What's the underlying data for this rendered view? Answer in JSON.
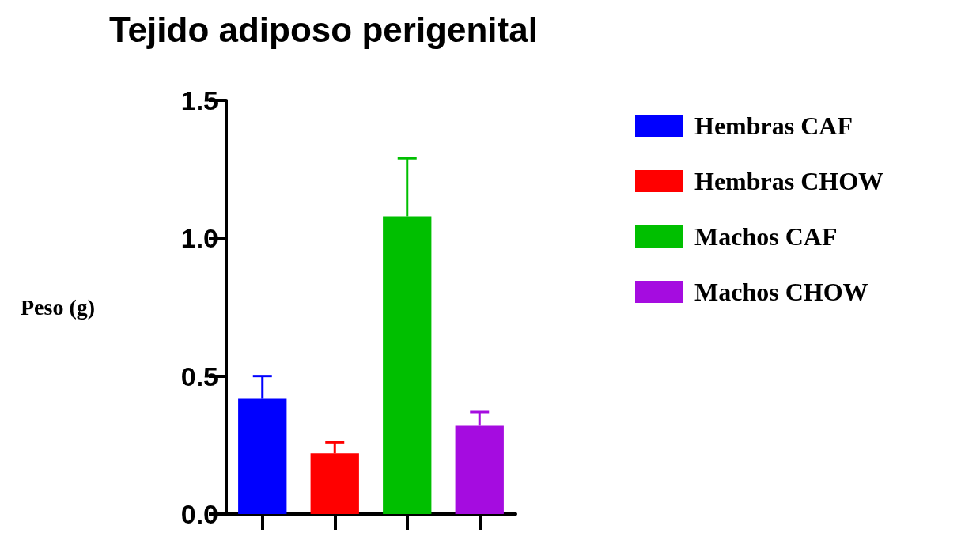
{
  "chart_data": {
    "type": "bar",
    "title": "Tejido adiposo perigenital",
    "ylabel": "Peso (g)",
    "categories": [
      null,
      null,
      null,
      null
    ],
    "stacked": true,
    "series": [
      {
        "name": "Hembras CAF",
        "color": "#0000ff",
        "values": [
          0.42,
          null,
          null,
          null
        ],
        "errors": [
          [
            0.42,
            0.5
          ],
          null,
          null,
          null
        ]
      },
      {
        "name": "Hembras CHOW",
        "color": "#ff0000",
        "values": [
          null,
          0.22,
          null,
          null
        ],
        "errors": [
          null,
          [
            0.22,
            0.26
          ],
          null,
          null
        ]
      },
      {
        "name": "Machos CAF",
        "color": "#00bf00",
        "values": [
          null,
          null,
          1.08,
          null
        ],
        "errors": [
          null,
          null,
          [
            1.08,
            1.29
          ],
          null
        ]
      },
      {
        "name": "Machos CHOW",
        "color": "#a50ce0",
        "values": [
          null,
          null,
          null,
          0.32
        ],
        "errors": [
          null,
          null,
          null,
          [
            0.32,
            0.37
          ]
        ]
      }
    ],
    "ylim": [
      0,
      1.5
    ],
    "yticks": [
      {
        "value": 0,
        "label": "0.0"
      },
      {
        "value": 0.5,
        "label": "0.5"
      },
      {
        "value": 1,
        "label": "1.0"
      },
      {
        "value": 1.5,
        "label": "1.5"
      }
    ],
    "grid": false,
    "legend": "top right"
  }
}
